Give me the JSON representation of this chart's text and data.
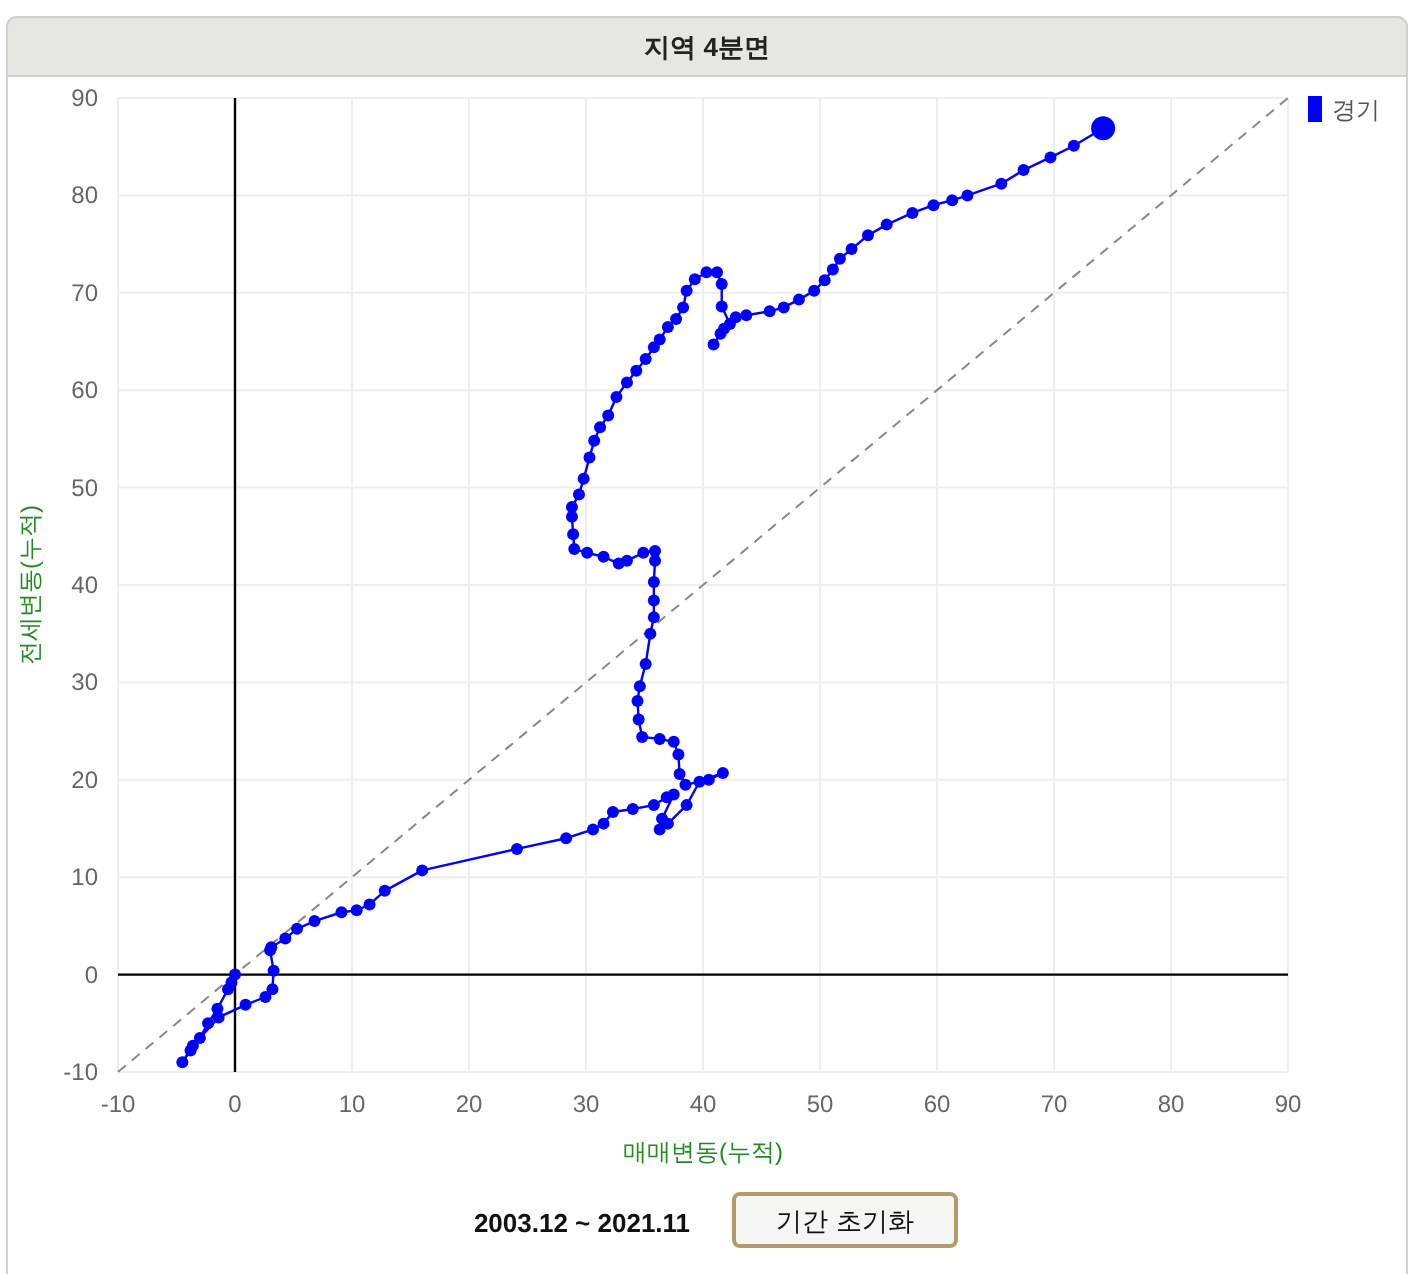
{
  "chart_data": {
    "type": "line",
    "title": "지역 4분면",
    "xlabel": "매매변동(누적)",
    "ylabel": "전세변동(누적)",
    "xlim": [
      -10,
      90
    ],
    "xticks": [
      -10,
      0,
      10,
      20,
      30,
      40,
      50,
      60,
      70,
      80,
      90
    ],
    "ylim": [
      -10,
      90
    ],
    "yticks": [
      -10,
      0,
      10,
      20,
      30,
      40,
      50,
      60,
      70,
      80,
      90
    ],
    "grid": true,
    "legend": "top right",
    "marker": "circle",
    "series": [
      {
        "type": "line",
        "color": "#888888",
        "line_style": "dashed",
        "marker": "none",
        "x": [
          -10,
          90
        ],
        "values": [
          -10,
          90
        ]
      },
      {
        "name": "경기",
        "color": "#0000ff",
        "line_style": "solid",
        "x": [
          0,
          -0.3,
          -0.6,
          -1.5,
          -2.3,
          -3,
          -3.8,
          -4.5,
          -3.6,
          -1.4,
          0.9,
          2.6,
          3.2,
          3.3,
          3.0,
          3.1,
          4.3,
          5.3,
          6.8,
          9.1,
          10.4,
          11.5,
          12.8,
          16.0,
          24.1,
          28.3,
          30.6,
          31.5,
          32.3,
          34.0,
          35.8,
          36.9,
          37.5,
          36.5,
          36.3,
          37.0,
          38.6,
          39.7,
          41.7,
          40.5,
          38.5,
          38.0,
          37.9,
          37.5,
          36.3,
          34.8,
          34.5,
          34.4,
          34.6,
          35.1,
          35.5,
          35.8,
          35.8,
          35.8,
          35.9,
          35.9,
          34.9,
          33.5,
          32.8,
          31.5,
          30.1,
          29.0,
          28.9,
          28.8,
          28.8,
          29.4,
          29.8,
          30.3,
          30.7,
          31.2,
          31.9,
          32.6,
          33.5,
          34.3,
          35.1,
          35.8,
          36.3,
          37.0,
          37.7,
          38.3,
          38.6,
          39.3,
          40.3,
          41.2,
          41.6,
          41.6,
          42.3,
          41.5,
          40.9,
          41.8,
          42.8,
          43.7,
          45.7,
          46.9,
          48.2,
          49.5,
          50.4,
          51.1,
          51.7,
          52.7,
          54.1,
          55.7,
          57.9,
          59.7,
          61.3,
          62.6,
          65.5,
          67.4,
          69.7,
          71.7,
          74.2
        ],
        "values": [
          0,
          -0.8,
          -1.5,
          -3.5,
          -5,
          -6.5,
          -7.8,
          -9,
          -7.3,
          -4.4,
          -3.1,
          -2.3,
          -1.5,
          0.4,
          2.5,
          2.8,
          3.7,
          4.7,
          5.5,
          6.4,
          6.6,
          7.2,
          8.6,
          10.7,
          12.9,
          14.0,
          14.9,
          15.5,
          16.7,
          17.0,
          17.4,
          18.2,
          18.5,
          16.0,
          14.9,
          15.5,
          17.4,
          19.8,
          20.7,
          20.0,
          19.5,
          20.6,
          22.6,
          23.9,
          24.2,
          24.4,
          26.2,
          28.1,
          29.6,
          31.9,
          35.0,
          36.7,
          38.4,
          40.3,
          42.5,
          43.5,
          43.3,
          42.5,
          42.2,
          42.9,
          43.3,
          43.7,
          45.2,
          47.0,
          48.0,
          49.3,
          50.9,
          53.1,
          54.8,
          56.2,
          57.4,
          59.3,
          60.8,
          62.0,
          63.2,
          64.4,
          65.2,
          66.5,
          67.3,
          68.5,
          70.2,
          71.4,
          72.1,
          72.1,
          70.9,
          68.6,
          66.8,
          65.8,
          64.7,
          66.3,
          67.5,
          67.7,
          68.1,
          68.5,
          69.3,
          70.2,
          71.3,
          72.4,
          73.5,
          74.5,
          75.9,
          77.0,
          78.2,
          79.0,
          79.5,
          80.0,
          81.2,
          82.6,
          83.9,
          85.1,
          86.9
        ]
      }
    ],
    "annotations": [
      "2003.12 ~ 2021.11",
      "기간 초기화"
    ]
  }
}
